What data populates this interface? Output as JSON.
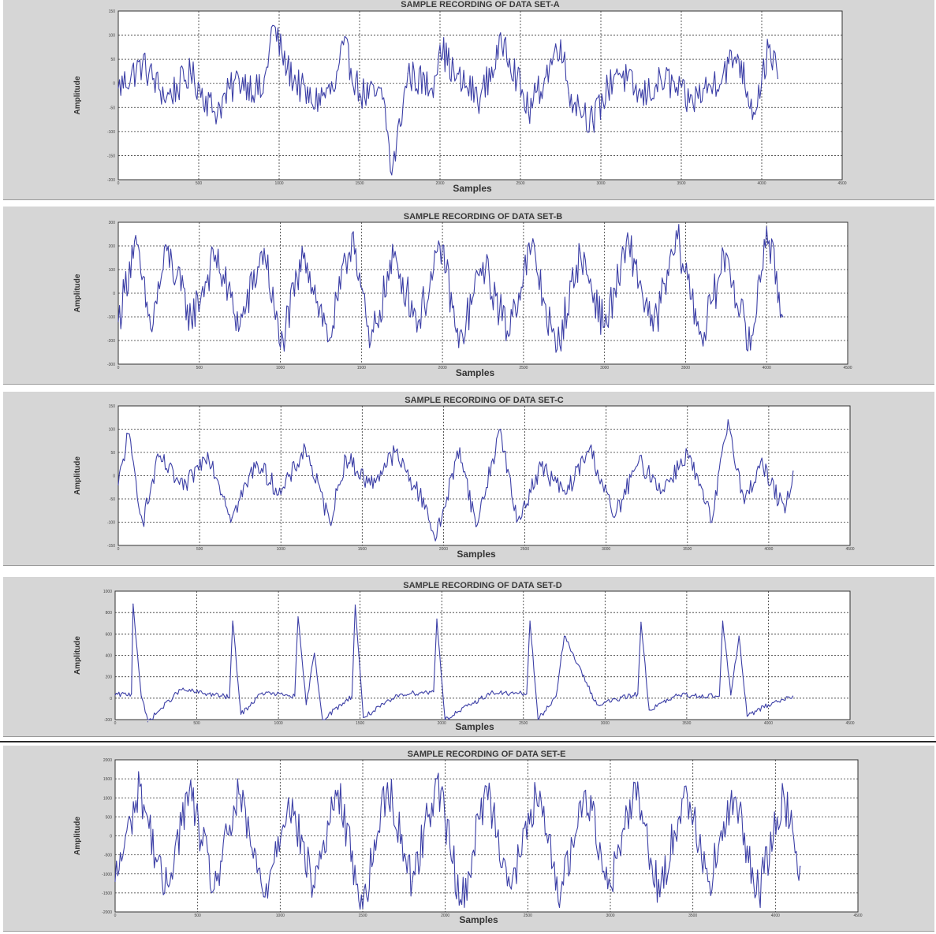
{
  "colors": {
    "background": "#d6d6d6",
    "plot_bg": "#ffffff",
    "trace": "#3c3fa6"
  },
  "chart_data": [
    {
      "type": "line",
      "title": "SAMPLE RECORDING OF DATA SET-A",
      "xlabel": "Samples",
      "ylabel": "Amplitude",
      "xlim": [
        0,
        4500
      ],
      "ylim": [
        -200,
        150
      ],
      "xticks": [
        0,
        500,
        1000,
        1500,
        2000,
        2500,
        3000,
        3500,
        4000,
        4500
      ],
      "yticks": [
        150,
        100,
        50,
        0,
        -50,
        -100,
        -150,
        -200
      ],
      "grid": true,
      "series": [
        {
          "x": [
            0,
            150,
            300,
            450,
            600,
            750,
            900,
            960,
            1050,
            1200,
            1350,
            1400,
            1500,
            1650,
            1700,
            1800,
            1950,
            2000,
            2100,
            2250,
            2400,
            2550,
            2650,
            2750,
            2800,
            2950,
            3100,
            3250,
            3400,
            3550,
            3700,
            3850,
            3950,
            4050,
            4100
          ],
          "y": [
            -10,
            40,
            -30,
            20,
            -60,
            10,
            -20,
            120,
            30,
            -40,
            -10,
            80,
            -20,
            -30,
            -190,
            20,
            -10,
            80,
            10,
            -30,
            90,
            -60,
            10,
            90,
            -20,
            -80,
            30,
            -30,
            10,
            -40,
            0,
            60,
            -60,
            80,
            10
          ]
        }
      ]
    },
    {
      "type": "line",
      "title": "SAMPLE RECORDING OF DATA SET-B",
      "xlabel": "Samples",
      "ylabel": "Amplitude",
      "xlim": [
        0,
        4500
      ],
      "ylim": [
        -300,
        300
      ],
      "xticks": [
        0,
        500,
        1000,
        1500,
        2000,
        2500,
        3000,
        3500,
        4000,
        4500
      ],
      "yticks": [
        300,
        200,
        100,
        0,
        -100,
        -200,
        -300
      ],
      "grid": true,
      "series": [
        {
          "x": [
            0,
            100,
            200,
            300,
            450,
            600,
            750,
            900,
            1000,
            1150,
            1300,
            1450,
            1550,
            1700,
            1850,
            2000,
            2100,
            2250,
            2400,
            2550,
            2700,
            2850,
            3000,
            3150,
            3300,
            3450,
            3600,
            3750,
            3900,
            4000,
            4100
          ],
          "y": [
            -120,
            220,
            -150,
            180,
            -110,
            160,
            -140,
            190,
            -230,
            170,
            -200,
            260,
            -230,
            150,
            -120,
            200,
            -230,
            130,
            -160,
            200,
            -250,
            170,
            -140,
            210,
            -160,
            230,
            -190,
            170,
            -240,
            280,
            -100
          ]
        }
      ]
    },
    {
      "type": "line",
      "title": "SAMPLE RECORDING OF DATA SET-C",
      "xlabel": "Samples",
      "ylabel": "Amplitude",
      "xlim": [
        0,
        4500
      ],
      "ylim": [
        -150,
        150
      ],
      "xticks": [
        0,
        500,
        1000,
        1500,
        2000,
        2500,
        3000,
        3500,
        4000,
        4500
      ],
      "yticks": [
        150,
        100,
        50,
        0,
        -50,
        -100,
        -150
      ],
      "grid": true,
      "series": [
        {
          "x": [
            0,
            60,
            150,
            250,
            400,
            550,
            700,
            850,
            1000,
            1150,
            1300,
            1400,
            1550,
            1700,
            1900,
            1950,
            2100,
            2200,
            2350,
            2450,
            2600,
            2750,
            2900,
            3050,
            3200,
            3350,
            3500,
            3650,
            3750,
            3850,
            3950,
            4100,
            4150
          ],
          "y": [
            -20,
            90,
            -100,
            40,
            -30,
            50,
            -90,
            30,
            -40,
            60,
            -100,
            40,
            -20,
            50,
            -70,
            -140,
            60,
            -110,
            100,
            -100,
            20,
            -40,
            60,
            -90,
            30,
            -30,
            50,
            -100,
            120,
            -60,
            30,
            -80,
            10
          ]
        }
      ]
    },
    {
      "type": "line",
      "title": "SAMPLE RECORDING OF DATA SET-D",
      "xlabel": "Samples",
      "ylabel": "Amplitude",
      "xlim": [
        0,
        4500
      ],
      "ylim": [
        -200,
        1000
      ],
      "xticks": [
        0,
        500,
        1000,
        1500,
        2000,
        2500,
        3000,
        3500,
        4000,
        4500
      ],
      "yticks": [
        1000,
        800,
        600,
        400,
        200,
        0,
        -200
      ],
      "grid": true,
      "series": [
        {
          "x": [
            0,
            100,
            110,
            160,
            200,
            400,
            700,
            720,
            770,
            900,
            1100,
            1120,
            1170,
            1220,
            1270,
            1450,
            1470,
            1520,
            1750,
            1950,
            1970,
            2020,
            2300,
            2520,
            2540,
            2590,
            2700,
            2750,
            2950,
            3200,
            3220,
            3270,
            3450,
            3700,
            3720,
            3770,
            3820,
            3870,
            4000,
            4150
          ],
          "y": [
            30,
            40,
            880,
            20,
            -220,
            80,
            10,
            720,
            -150,
            50,
            20,
            760,
            -60,
            420,
            -200,
            20,
            870,
            -180,
            40,
            60,
            740,
            -200,
            50,
            40,
            720,
            -200,
            20,
            580,
            -60,
            40,
            710,
            -110,
            30,
            20,
            720,
            30,
            580,
            -170,
            -60,
            20
          ]
        }
      ]
    },
    {
      "type": "line",
      "title": "SAMPLE RECORDING OF DATA SET-E",
      "xlabel": "Samples",
      "ylabel": "Amplitude",
      "xlim": [
        0,
        4500
      ],
      "ylim": [
        -2000,
        2000
      ],
      "xticks": [
        0,
        500,
        1000,
        1500,
        2000,
        2500,
        3000,
        3500,
        4000,
        4500
      ],
      "yticks": [
        2000,
        1500,
        1000,
        500,
        0,
        -500,
        -1000,
        -1500,
        -2000
      ],
      "grid": true,
      "series": [
        {
          "x": [
            0,
            150,
            300,
            450,
            600,
            750,
            900,
            1050,
            1200,
            1350,
            1500,
            1650,
            1800,
            1950,
            2100,
            2250,
            2400,
            2550,
            2700,
            2850,
            3000,
            3150,
            3300,
            3450,
            3600,
            3750,
            3900,
            4050,
            4150
          ],
          "y": [
            -1200,
            1300,
            -1500,
            1200,
            -1400,
            1100,
            -1600,
            1000,
            -1300,
            1200,
            -1900,
            1400,
            -1200,
            1500,
            -1800,
            1300,
            -1400,
            1100,
            -1500,
            1200,
            -1300,
            1400,
            -1600,
            1300,
            -1200,
            1000,
            -1500,
            1100,
            -800
          ]
        }
      ]
    }
  ]
}
